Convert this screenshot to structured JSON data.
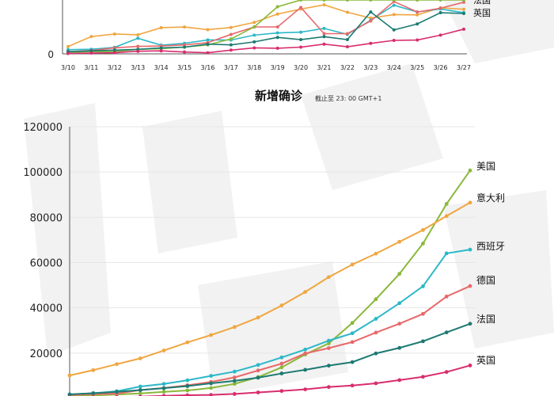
{
  "chart_data": [
    {
      "type": "line",
      "title": "",
      "categories": [
        "3/10",
        "3/11",
        "3/12",
        "3/13",
        "3/14",
        "3/15",
        "3/16",
        "3/17",
        "3/18",
        "3/19",
        "3/20",
        "3/21",
        "3/22",
        "3/23",
        "3/24",
        "3/25",
        "3/26",
        "3/27"
      ],
      "y_tick_labels": [
        "0"
      ],
      "ylim": [
        0,
        7200
      ],
      "series": [
        {
          "name": "意大利",
          "color": "#f0a640",
          "values": [
            977,
            2313,
            2651,
            2547,
            3497,
            3590,
            3233,
            3526,
            4207,
            5322,
            5986,
            6557,
            5560,
            4789,
            5249,
            5210,
            6153,
            5959
          ]
        },
        {
          "name": "西班牙",
          "color": "#2bb8c8",
          "values": [
            564,
            615,
            869,
            2086,
            1159,
            1407,
            1863,
            1854,
            2500,
            2800,
            2900,
            3400,
            2600,
            4500,
            6500,
            5600,
            6000,
            5500
          ]
        },
        {
          "name": "德国",
          "color": "#e8686a",
          "values": [
            300,
            450,
            800,
            1000,
            1050,
            1200,
            1500,
            2600,
            3600,
            3600,
            6200,
            2700,
            2700,
            4400,
            7000,
            5600,
            6100,
            6900
          ]
        },
        {
          "name": "美国",
          "color": "#8ab83a",
          "values": [
            200,
            300,
            300,
            600,
            700,
            900,
            1200,
            2000,
            3600,
            6300,
            7200,
            7200,
            7200,
            7200,
            7200,
            7200,
            7200,
            7200
          ]
        },
        {
          "name": "法国",
          "color": "#1d7a72",
          "values": [
            300,
            400,
            500,
            600,
            800,
            900,
            1300,
            1200,
            1600,
            2200,
            1900,
            2300,
            1900,
            5600,
            3200,
            4000,
            5500,
            5400
          ]
        },
        {
          "name": "英国",
          "color": "#d82d6e",
          "values": [
            50,
            100,
            150,
            350,
            400,
            250,
            150,
            500,
            800,
            750,
            900,
            1300,
            950,
            1400,
            1800,
            1850,
            2500,
            3300
          ]
        }
      ],
      "legend_labels": [
        "法国",
        "英国"
      ]
    },
    {
      "type": "line",
      "title": "新增确诊",
      "subtitle": "截止至 23: 00 GMT+1",
      "xlabel": "",
      "ylabel": "",
      "ylim": [
        0,
        120000
      ],
      "y_ticks": [
        20000,
        40000,
        60000,
        80000,
        100000,
        120000
      ],
      "y_tick_labels": [
        "20000",
        "40000",
        "60000",
        "80000",
        "100000",
        "120000"
      ],
      "x_count": 18,
      "series": [
        {
          "name": "美国",
          "color": "#8ab83a",
          "values": [
            1000,
            1300,
            1700,
            2200,
            2900,
            3500,
            4600,
            6400,
            9400,
            13700,
            19400,
            24300,
            33300,
            43800,
            55000,
            68400,
            85900,
            100700
          ]
        },
        {
          "name": "意大利",
          "color": "#f0a640",
          "values": [
            10149,
            12462,
            15113,
            17660,
            21157,
            24747,
            27980,
            31506,
            35713,
            41035,
            47021,
            53578,
            59138,
            63927,
            69176,
            74386,
            80539,
            86498
          ]
        },
        {
          "name": "西班牙",
          "color": "#2bb8c8",
          "values": [
            1695,
            2277,
            3146,
            5232,
            6391,
            7988,
            9942,
            11826,
            14769,
            18077,
            21571,
            25496,
            28768,
            35136,
            42058,
            49515,
            64059,
            65719
          ]
        },
        {
          "name": "德国",
          "color": "#e8686a",
          "values": [
            1457,
            1908,
            2078,
            3675,
            4585,
            5795,
            7272,
            9257,
            12327,
            15320,
            19848,
            22213,
            24873,
            29056,
            32986,
            37323,
            45000,
            49624
          ]
        },
        {
          "name": "法国",
          "color": "#1d7a72",
          "values": [
            1784,
            2281,
            2876,
            3661,
            4499,
            5423,
            6633,
            7730,
            9134,
            10995,
            12612,
            14459,
            16018,
            19856,
            22304,
            25233,
            29155,
            32964
          ]
        },
        {
          "name": "英国",
          "color": "#d82d6e",
          "values": [
            373,
            460,
            590,
            798,
            1140,
            1391,
            1543,
            1950,
            2626,
            3269,
            3983,
            5018,
            5683,
            6650,
            8077,
            9529,
            11658,
            14543
          ]
        }
      ]
    }
  ]
}
